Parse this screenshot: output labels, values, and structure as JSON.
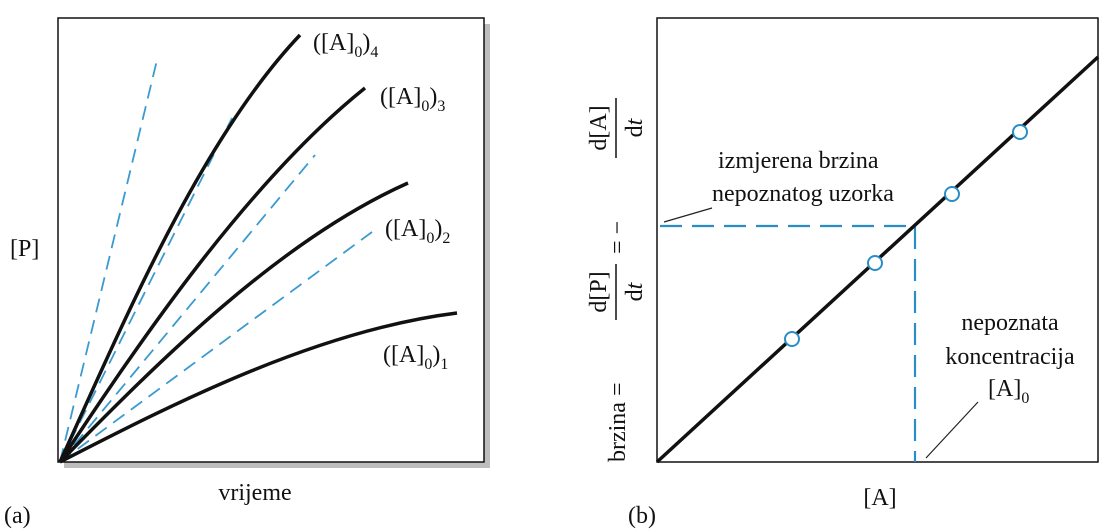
{
  "panel_a": {
    "tag": "(a)",
    "y_label": "[P]",
    "x_label": "vrijeme",
    "curves": [
      {
        "base": "([A]",
        "sub": "0",
        "close": ")",
        "index": "1"
      },
      {
        "base": "([A]",
        "sub": "0",
        "close": ")",
        "index": "2"
      },
      {
        "base": "([A]",
        "sub": "0",
        "close": ")",
        "index": "3"
      },
      {
        "base": "([A]",
        "sub": "0",
        "close": ")",
        "index": "4"
      }
    ]
  },
  "panel_b": {
    "tag": "(b)",
    "x_label": "[A]",
    "y_label": {
      "word": "brzina =",
      "num1": "d[P]",
      "den1_d": "d",
      "den1_t": "t",
      "eq": "= −",
      "num2": "d[A]",
      "den2_d": "d",
      "den2_t": "t"
    },
    "measured": [
      "izmjerena brzina",
      "nepoznatog uzorka"
    ],
    "unknown": [
      "nepoznata",
      "koncentracija"
    ],
    "unknown_symbol": {
      "base": "[A]",
      "sub": "0"
    }
  }
}
